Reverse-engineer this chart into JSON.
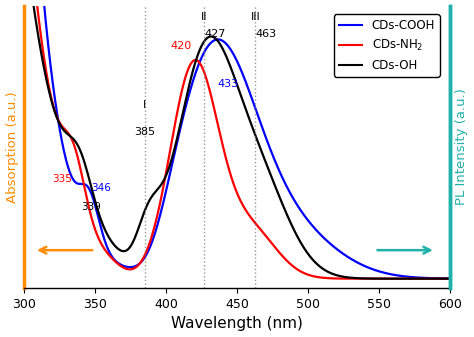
{
  "xmin": 300,
  "xmax": 600,
  "xlabel": "Wavelength (nm)",
  "ylabel_left": "Absorption (a.u.)",
  "ylabel_right": "PL Intensity (a.u.)",
  "ylabel_left_color": "#FF8C00",
  "ylabel_right_color": "#20B2AA",
  "arrow_left_color": "#FF8C00",
  "arrow_right_color": "#20B2AA",
  "dotted_lines": [
    385,
    427,
    463
  ],
  "background_color": "#ffffff"
}
